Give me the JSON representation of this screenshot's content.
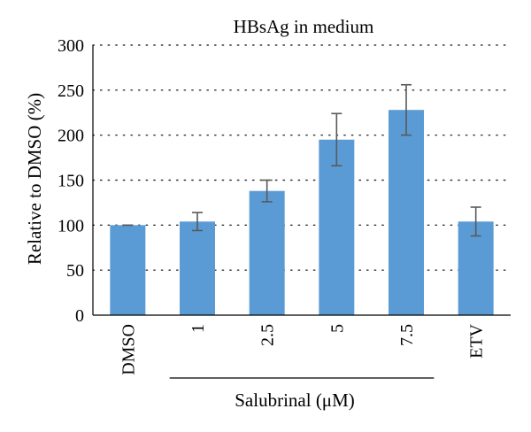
{
  "chart_data": {
    "type": "bar",
    "title": "HBsAg in medium",
    "ylabel": "Relative to DMSO (%)",
    "xlabel": "",
    "categories": [
      "DMSO",
      "1",
      "2.5",
      "5",
      "7.5",
      "ETV"
    ],
    "values": [
      100,
      104,
      138,
      195,
      228,
      104
    ],
    "errors": [
      0,
      10,
      12,
      29,
      28,
      16
    ],
    "ylim": [
      0,
      300
    ],
    "yticks": [
      "0",
      "50",
      "100",
      "150",
      "200",
      "250",
      "300"
    ],
    "ytick_values": [
      0,
      50,
      100,
      150,
      200,
      250,
      300
    ],
    "grid": "horizontal-dotted",
    "group_label": "Salubrinal (μM)",
    "group_categories": [
      "1",
      "2.5",
      "5",
      "7.5"
    ],
    "colors": {
      "bar": "#5b9bd5",
      "error_bar": "#595959",
      "grid": "#333333",
      "axis": "#000000"
    }
  }
}
